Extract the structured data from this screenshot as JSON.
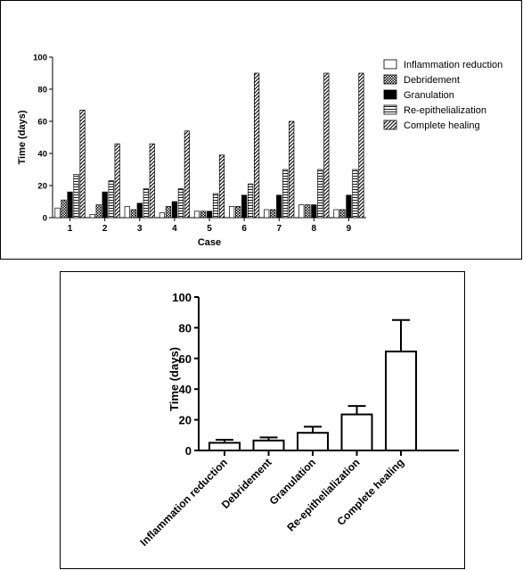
{
  "chart_data": [
    {
      "type": "bar",
      "ylabel": "Time (days)",
      "xlabel": "Case",
      "ylim": [
        0,
        100
      ],
      "yticks": [
        0,
        20,
        40,
        60,
        80,
        100
      ],
      "categories": [
        "1",
        "2",
        "3",
        "4",
        "5",
        "6",
        "7",
        "8",
        "9"
      ],
      "legend_position": "right",
      "series": [
        {
          "name": "Inflammation reduction",
          "pattern": "white",
          "values": [
            6,
            2,
            7,
            3,
            4,
            7,
            5,
            8,
            5
          ]
        },
        {
          "name": "Debridement",
          "pattern": "checker",
          "values": [
            11,
            8,
            5,
            7,
            4,
            7,
            5,
            8,
            5
          ]
        },
        {
          "name": "Granulation",
          "pattern": "black",
          "values": [
            16,
            16,
            9,
            10,
            4,
            14,
            14,
            8,
            14
          ]
        },
        {
          "name": "Re-epithelialization",
          "pattern": "hlines",
          "values": [
            27,
            23,
            18,
            18,
            15,
            21,
            30,
            30,
            30
          ]
        },
        {
          "name": "Complete healing",
          "pattern": "diag",
          "values": [
            67,
            46,
            46,
            54,
            39,
            90,
            60,
            90,
            90
          ]
        }
      ]
    },
    {
      "type": "bar",
      "ylabel": "Time (days)",
      "ylim": [
        0,
        100
      ],
      "yticks": [
        0,
        20,
        40,
        60,
        80,
        100
      ],
      "categories": [
        "Inflammation reduction",
        "Debridement",
        "Granulation",
        "Re-epithelialization",
        "Complete healing"
      ],
      "values": [
        5,
        6.5,
        11.5,
        23.5,
        64.5
      ],
      "error_upper": [
        7,
        8.5,
        15.5,
        29,
        85
      ]
    }
  ]
}
